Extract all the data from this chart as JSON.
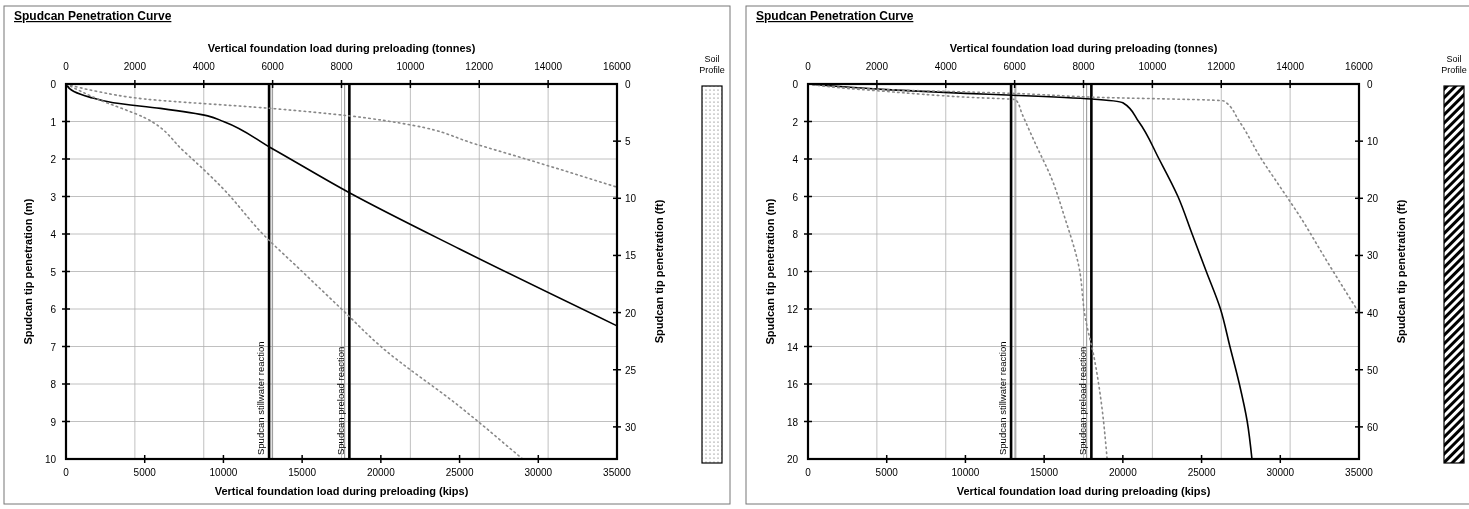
{
  "chart_data": [
    {
      "type": "line",
      "title": "Spudcan Penetration Curve",
      "xlabel": "Vertical foundation load during preloading (kips)",
      "x2label": "Vertical foundation load during preloading (tonnes)",
      "ylabel": "Spudcan tip penetration (m)",
      "y2label": "Spudcan tip penetration (ft)",
      "xlim": [
        0,
        35000
      ],
      "xticks": [
        0,
        5000,
        10000,
        15000,
        20000,
        25000,
        30000,
        35000
      ],
      "x2lim": [
        0,
        16000
      ],
      "x2ticks": [
        0,
        2000,
        4000,
        6000,
        8000,
        10000,
        12000,
        14000,
        16000
      ],
      "ylim": [
        10,
        0
      ],
      "yticks": [
        0,
        1,
        2,
        3,
        4,
        5,
        6,
        7,
        8,
        9,
        10
      ],
      "y2lim": [
        32.81,
        0
      ],
      "y2ticks": [
        0,
        5,
        10,
        15,
        20,
        25,
        30
      ],
      "grid": true,
      "annotations": [
        "Soil Profile"
      ],
      "ref_lines": [
        {
          "axis": "x",
          "value": 12900,
          "label": "Spudcan stillwater reaction",
          "color": "#000000"
        },
        {
          "axis": "x",
          "value": 13100,
          "color": "#888888"
        },
        {
          "axis": "x",
          "value": 17700,
          "color": "#888888"
        },
        {
          "axis": "x",
          "value": 18000,
          "label": "Spudcan preload reaction",
          "color": "#000000"
        }
      ],
      "series": [
        {
          "color": "#000000",
          "line_style": "solid",
          "x": [
            0,
            500,
            1500,
            3000,
            6000,
            9000,
            10000,
            13000,
            18000,
            25000,
            35000
          ],
          "values": [
            0,
            0.2,
            0.35,
            0.5,
            0.65,
            0.85,
            1.0,
            1.7,
            2.9,
            4.4,
            6.45
          ]
        },
        {
          "color": "#888888",
          "line_style": "dotted",
          "x": [
            0,
            2000,
            5000,
            13000,
            18000,
            22000,
            26000,
            30000,
            35000
          ],
          "values": [
            0,
            0.2,
            0.4,
            0.65,
            0.85,
            1.1,
            1.6,
            2.1,
            2.75
          ]
        },
        {
          "color": "#888888",
          "line_style": "dotted",
          "x": [
            0,
            2000,
            5000,
            7500,
            10000,
            12500,
            15000,
            17500,
            20000,
            25000,
            29000
          ],
          "values": [
            0,
            0.4,
            0.9,
            1.8,
            2.8,
            4.0,
            5.0,
            6.0,
            7.0,
            8.6,
            10
          ]
        }
      ]
    },
    {
      "type": "line",
      "title": "Spudcan Penetration Curve",
      "xlabel": "Vertical foundation load during preloading (kips)",
      "x2label": "Vertical foundation load during preloading (tonnes)",
      "ylabel": "Spudcan tip penetration (m)",
      "y2label": "Spudcan tip penetration (ft)",
      "xlim": [
        0,
        35000
      ],
      "xticks": [
        0,
        5000,
        10000,
        15000,
        20000,
        25000,
        30000,
        35000
      ],
      "x2lim": [
        0,
        16000
      ],
      "x2ticks": [
        0,
        2000,
        4000,
        6000,
        8000,
        10000,
        12000,
        14000,
        16000
      ],
      "ylim": [
        20,
        0
      ],
      "yticks": [
        0,
        2,
        4,
        6,
        8,
        10,
        12,
        14,
        16,
        18,
        20
      ],
      "y2lim": [
        65.62,
        0
      ],
      "y2ticks": [
        0,
        10,
        20,
        30,
        40,
        50,
        60
      ],
      "grid": true,
      "annotations": [
        "Soil Profile"
      ],
      "ref_lines": [
        {
          "axis": "x",
          "value": 12900,
          "label": "Spudcan stillwater reaction",
          "color": "#000000"
        },
        {
          "axis": "x",
          "value": 13200,
          "color": "#888888"
        },
        {
          "axis": "x",
          "value": 17700,
          "color": "#888888"
        },
        {
          "axis": "x",
          "value": 18000,
          "label": "Spudcan preload reaction",
          "color": "#000000"
        }
      ],
      "series": [
        {
          "color": "#000000",
          "line_style": "solid",
          "x": [
            0,
            5000,
            10000,
            13000,
            18000,
            20000,
            21000,
            22300,
            23500,
            24400,
            25300,
            26200,
            26800,
            27400,
            27900,
            28200
          ],
          "values": [
            0,
            0.3,
            0.5,
            0.6,
            0.8,
            1.0,
            2,
            4,
            6,
            8,
            10,
            12,
            14,
            16,
            18,
            20
          ]
        },
        {
          "color": "#888888",
          "line_style": "dotted",
          "x": [
            0,
            5000,
            13000,
            18000,
            26400,
            27400,
            28800,
            30000,
            31200,
            33000,
            35000
          ],
          "values": [
            0,
            0.3,
            0.5,
            0.7,
            0.9,
            2,
            4,
            5.5,
            7,
            9.5,
            12.2
          ]
        },
        {
          "color": "#888888",
          "line_style": "dotted",
          "x": [
            0,
            2000,
            5000,
            10000,
            13200,
            13600,
            14400,
            15500,
            16300,
            17200,
            17600,
            18200,
            18600,
            19000
          ],
          "values": [
            0,
            0.2,
            0.4,
            0.7,
            0.84,
            1.6,
            3.1,
            5.1,
            7.1,
            9.7,
            12.4,
            14.7,
            16.8,
            20
          ]
        }
      ]
    }
  ]
}
